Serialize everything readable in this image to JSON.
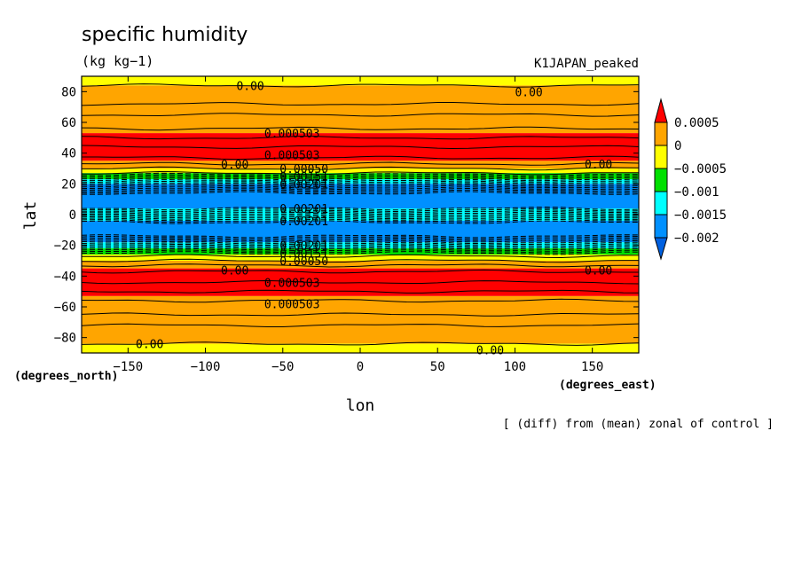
{
  "chart_data": {
    "type": "heatmap",
    "title": "specific humidity",
    "units": "(kg kg−1)",
    "run_label": "K1JAPAN_peaked",
    "note": "[ (diff) from (mean) zonal of control ]",
    "xlabel": "lon",
    "ylabel": "lat",
    "x_unit": "(degrees_east)",
    "y_unit": "(degrees_north)",
    "xlim": [
      -180,
      180
    ],
    "ylim": [
      -90,
      90
    ],
    "x_ticks": [
      -150,
      -100,
      -50,
      0,
      50,
      100,
      150
    ],
    "y_ticks": [
      80,
      60,
      40,
      20,
      0,
      -20,
      -40,
      -60,
      -80
    ],
    "x_tick_labels": [
      "−150",
      "−100",
      "−50",
      "0",
      "50",
      "100",
      "150"
    ],
    "y_tick_labels": [
      "80",
      "60",
      "40",
      "20",
      "0",
      "−20",
      "−40",
      "−60",
      "−80"
    ],
    "colorbar": {
      "labels": [
        "0.0005",
        "0",
        "−0.0005",
        "−0.001",
        "−0.0015",
        "−0.002"
      ],
      "levels": [
        0.0005,
        0,
        -0.0005,
        -0.001,
        -0.0015,
        -0.002
      ],
      "colors": [
        "#ff0000",
        "#ffa500",
        "#ffff00",
        "#00e000",
        "#00ffff",
        "#0090ff",
        "#0060e0"
      ]
    },
    "bands": [
      {
        "lat_from": 90,
        "lat_to": 84,
        "color": "#ffff00"
      },
      {
        "lat_from": 84,
        "lat_to": 53,
        "color": "#ffa500"
      },
      {
        "lat_from": 53,
        "lat_to": 35,
        "color": "#ff0000"
      },
      {
        "lat_from": 35,
        "lat_to": 30,
        "color": "#ffa500"
      },
      {
        "lat_from": 30,
        "lat_to": 27,
        "color": "#ffff00"
      },
      {
        "lat_from": 27,
        "lat_to": 23,
        "color": "#00e000"
      },
      {
        "lat_from": 23,
        "lat_to": 20,
        "color": "#00ffff"
      },
      {
        "lat_from": 20,
        "lat_to": 4,
        "color": "#0090ff"
      },
      {
        "lat_from": 4,
        "lat_to": -4,
        "color": "#00ffff"
      },
      {
        "lat_from": -4,
        "lat_to": -18,
        "color": "#0090ff"
      },
      {
        "lat_from": -18,
        "lat_to": -22,
        "color": "#00ffff"
      },
      {
        "lat_from": -22,
        "lat_to": -26,
        "color": "#00e000"
      },
      {
        "lat_from": -26,
        "lat_to": -30,
        "color": "#ffff00"
      },
      {
        "lat_from": -30,
        "lat_to": -35,
        "color": "#ffa500"
      },
      {
        "lat_from": -35,
        "lat_to": -53,
        "color": "#ff0000"
      },
      {
        "lat_from": -53,
        "lat_to": -84,
        "color": "#ffa500"
      },
      {
        "lat_from": -84,
        "lat_to": -90,
        "color": "#ffff00"
      }
    ],
    "solid_contours_lat": [
      84,
      72,
      65,
      56,
      50,
      44,
      37,
      33,
      30,
      27,
      -27,
      -30,
      -33,
      -37,
      -44,
      -50,
      -56,
      -65,
      -72,
      -84
    ],
    "dashed_contours_lat": [
      26,
      25,
      24,
      23,
      22,
      21,
      20,
      19,
      18,
      17,
      16,
      15,
      14,
      4,
      3,
      2,
      1,
      0,
      -1,
      -2,
      -3,
      -4,
      -5,
      -14,
      -15,
      -16,
      -17,
      -18,
      -19,
      -20,
      -21,
      -22,
      -23,
      -24,
      -25
    ],
    "contour_labels": [
      {
        "text": "0.00",
        "lon": -80,
        "lat": 84
      },
      {
        "text": "0.00",
        "lon": 100,
        "lat": 80
      },
      {
        "text": "0.000503",
        "lon": -62,
        "lat": 53
      },
      {
        "text": "0.000503",
        "lon": -62,
        "lat": 39
      },
      {
        "text": "0.00",
        "lon": -90,
        "lat": 33
      },
      {
        "text": "0.00",
        "lon": 145,
        "lat": 33
      },
      {
        "text": "0.00050",
        "lon": -52,
        "lat": 30
      },
      {
        "text": "0.00151",
        "lon": -52,
        "lat": 25
      },
      {
        "text": "0.00201",
        "lon": -52,
        "lat": 20
      },
      {
        "text": "0.00201",
        "lon": -52,
        "lat": 4
      },
      {
        "text": "0.00201",
        "lon": -52,
        "lat": -4
      },
      {
        "text": "0.00201",
        "lon": -52,
        "lat": -20
      },
      {
        "text": "0.00151",
        "lon": -52,
        "lat": -25
      },
      {
        "text": "0.00050",
        "lon": -52,
        "lat": -30
      },
      {
        "text": "0.00",
        "lon": -90,
        "lat": -36
      },
      {
        "text": "0.00",
        "lon": 145,
        "lat": -36
      },
      {
        "text": "0.000503",
        "lon": -62,
        "lat": -44
      },
      {
        "text": "0.000503",
        "lon": -62,
        "lat": -58
      },
      {
        "text": "0.00",
        "lon": -145,
        "lat": -84
      },
      {
        "text": "0.00",
        "lon": 75,
        "lat": -88
      }
    ]
  }
}
